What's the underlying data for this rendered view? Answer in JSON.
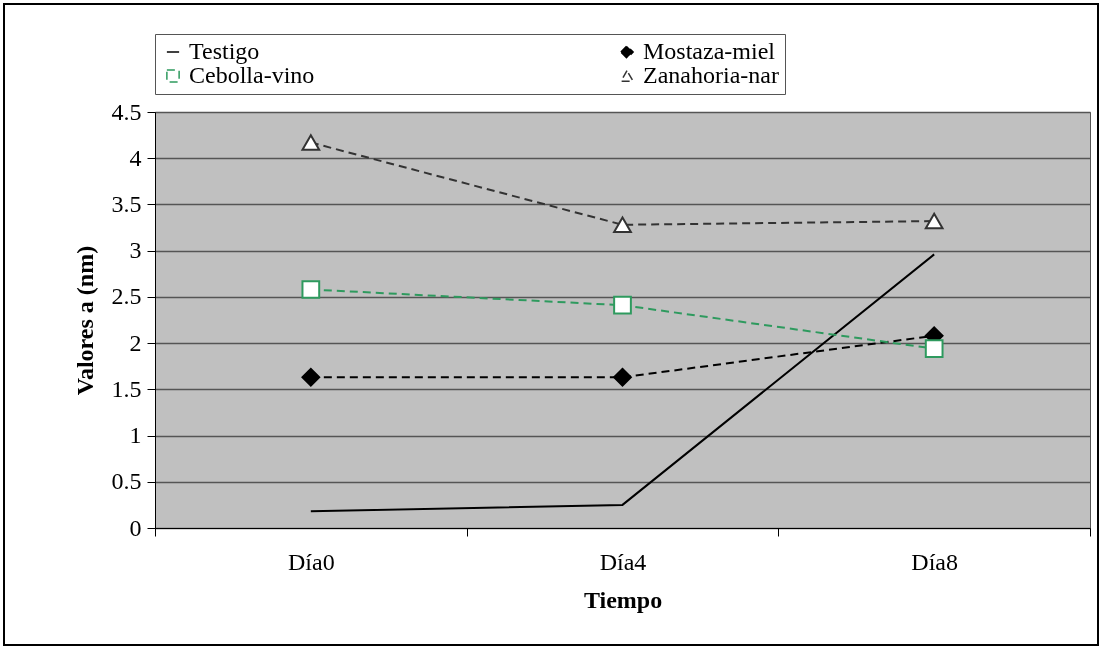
{
  "chart_data": {
    "type": "line",
    "xlabel": "Tiempo",
    "ylabel": "Valores a (nm)",
    "categories": [
      "Día0",
      "Día4",
      "Día8"
    ],
    "series": [
      {
        "name": "Testigo",
        "color": "#000000",
        "values": [
          0.18,
          0.25,
          2.96
        ],
        "marker": "none",
        "line_style": "solid"
      },
      {
        "name": "Mostaza-miel",
        "color": "#000000",
        "values": [
          1.63,
          1.63,
          2.08
        ],
        "marker": "diamond",
        "line_style": "dashed"
      },
      {
        "name": "Cebolla-vino",
        "color": "#2e9a5e",
        "values": [
          2.58,
          2.41,
          1.94
        ],
        "marker": "square",
        "line_style": "dashed"
      },
      {
        "name": "Zanahoria-nar",
        "color": "#333333",
        "values": [
          4.17,
          3.28,
          3.32
        ],
        "marker": "triangle",
        "line_style": "dashed"
      }
    ],
    "ylim": [
      0,
      4.5
    ],
    "yticks": [
      0,
      0.5,
      1,
      1.5,
      2,
      2.5,
      3,
      3.5,
      4,
      4.5
    ],
    "grid": "y",
    "legend": "top"
  }
}
